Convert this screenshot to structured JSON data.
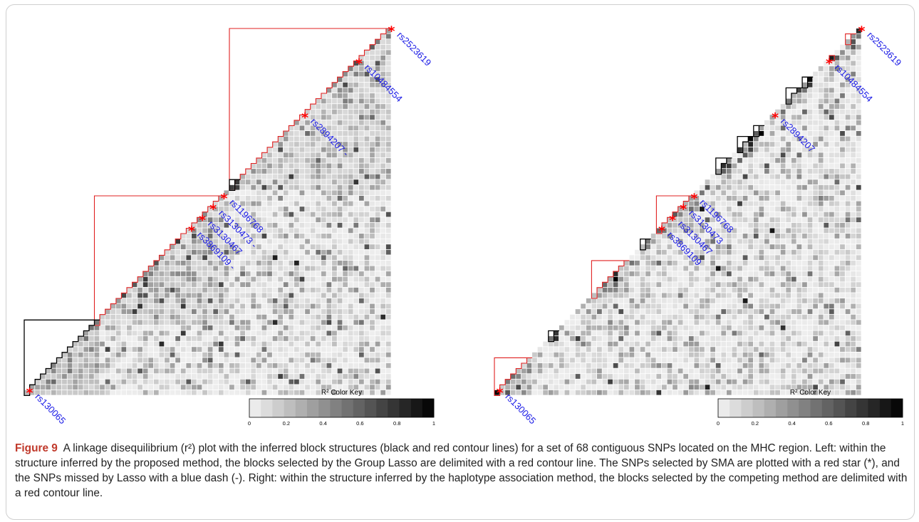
{
  "figure": {
    "left_panel": {
      "snps": [
        "rs2523619",
        "rs10484554",
        "rs2894207 -",
        "rs1196768",
        "rs3130473 -",
        "rs3130467",
        "rs3869109 -",
        "rs130065"
      ],
      "color_key": {
        "title": "R² Color Key",
        "ticks": [
          "0",
          "0.2",
          "0.4",
          "0.6",
          "0.8",
          "1"
        ]
      }
    },
    "right_panel": {
      "snps": [
        "rs2523619",
        "rs10484554",
        "rs2894207",
        "rs1196768",
        "rs3130473",
        "rs3130467",
        "rs3869109",
        "rs130065"
      ],
      "color_key": {
        "title": "R² Color Key",
        "ticks": [
          "0",
          "0.2",
          "0.4",
          "0.6",
          "0.8",
          "1"
        ]
      }
    },
    "colors": {
      "block_red": "#e02020",
      "block_black": "#000000",
      "star": "#ff0000",
      "snp_label": "#1a1ae6"
    },
    "chart_data": {
      "type": "heatmap",
      "n_snps": 68,
      "color_scale": {
        "name": "R² Color Key",
        "range": [
          0,
          1
        ],
        "low": "#f2f2f2",
        "high": "#000000"
      }
    }
  },
  "caption": {
    "label": "Figure 9",
    "text": "A linkage disequilibrium (r²) plot with the inferred block structures (black and red contour lines) for a set of 68 contiguous SNPs located on the MHC region. Left: within the structure inferred by the proposed method, the blocks selected by the Group Lasso are delimited with a red contour line. The SNPs selected by SMA are plotted with a red star (*), and the SNPs missed by Lasso with a blue dash (-). Right: within the structure inferred by the haplotype association method, the blocks selected by the competing method are delimited with a red contour line."
  }
}
